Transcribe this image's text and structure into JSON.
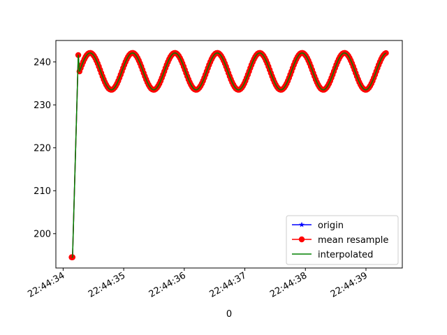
{
  "chart_data": {
    "type": "line",
    "xlabel": "0",
    "ylabel": "",
    "x_axis": "time",
    "xlim": [
      "22:44:33.880",
      "22:44:39.600"
    ],
    "ylim": [
      192.0,
      245.0
    ],
    "xticks": [
      "22:44:34",
      "22:44:35",
      "22:44:36",
      "22:44:37",
      "22:44:38",
      "22:44:39"
    ],
    "yticks": [
      200,
      210,
      220,
      230,
      240
    ],
    "grid": false,
    "legend_position": "lower right",
    "signal": {
      "start": "22:44:34.140",
      "end": "22:44:39.340",
      "mean": 237.8,
      "amplitude": 4.3,
      "period_s": 0.7,
      "phase_s": 0.87,
      "ramp_from": 194.5,
      "ramp_time": "22:44:34.155",
      "peak_time": "22:44:34.250",
      "peak_value": 241.6
    },
    "series": [
      {
        "name": "origin",
        "color": "#0000ff",
        "marker": "star"
      },
      {
        "name": "mean resample",
        "color": "#ff0000",
        "marker": "circle"
      },
      {
        "name": "interpolated",
        "color": "#008000",
        "marker": "none"
      }
    ]
  }
}
